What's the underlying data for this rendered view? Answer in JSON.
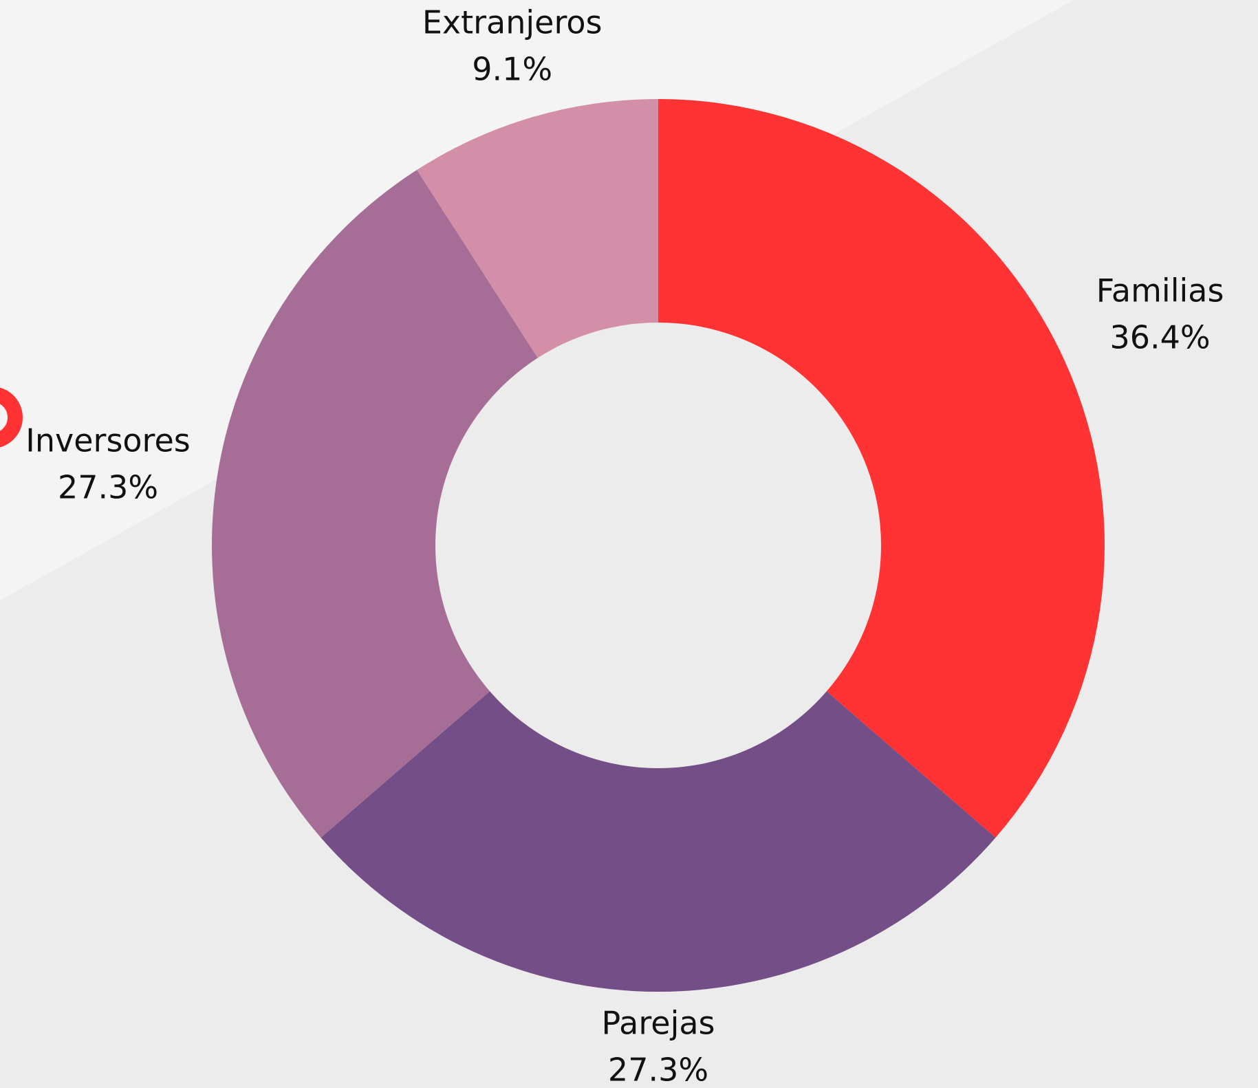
{
  "chart_data": {
    "type": "donut",
    "categories": [
      "Familias",
      "Parejas",
      "Inversores",
      "Extranjeros"
    ],
    "values": [
      36.4,
      27.3,
      27.3,
      9.1
    ],
    "value_labels": [
      "36.4%",
      "27.3%",
      "27.3%",
      "9.1%"
    ],
    "colors": [
      "#ff3333",
      "#734e87",
      "#a66e96",
      "#d48fa8"
    ]
  }
}
